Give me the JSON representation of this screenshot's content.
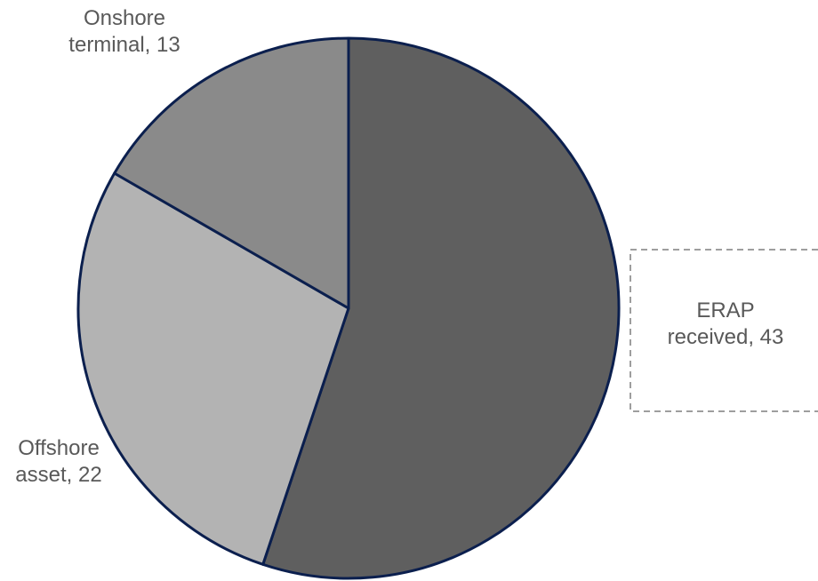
{
  "chart_data": {
    "type": "pie",
    "slices": [
      {
        "label": "ERAP received",
        "value": 43,
        "color": "#5f5f5f",
        "label_text": "ERAP received, 43",
        "lines": [
          "ERAP",
          "received, 43"
        ]
      },
      {
        "label": "Offshore asset",
        "value": 22,
        "color": "#b3b3b3",
        "label_text": "Offshore asset, 22",
        "lines": [
          "Offshore",
          "asset, 22"
        ]
      },
      {
        "label": "Onshore terminal",
        "value": 13,
        "color": "#8a8a8a",
        "label_text": "Onshore terminal, 13",
        "lines": [
          "Onshore",
          "terminal, 13"
        ]
      }
    ],
    "start_angle": "12 o'clock",
    "direction": "clockwise",
    "border_color": "#0b1f4e",
    "legend": "none",
    "title": ""
  }
}
